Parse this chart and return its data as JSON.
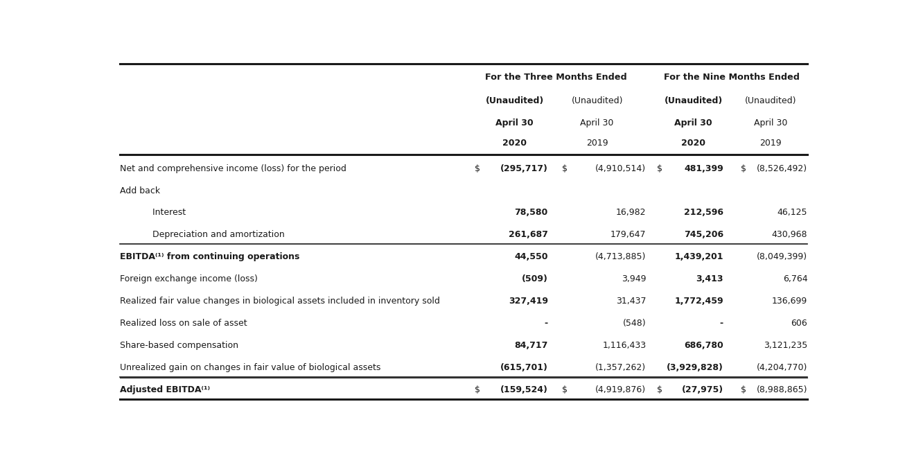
{
  "rows": [
    {
      "label": "Net and comprehensive income (loss) for the period",
      "bold": false,
      "indent": false,
      "has_dollar": true,
      "values": [
        "(295,717)",
        "(4,910,514)",
        "481,399",
        "(8,526,492)"
      ],
      "bold_values": [
        true,
        false,
        true,
        false
      ],
      "dollar_signs": [
        "$",
        "$",
        "$",
        "$"
      ],
      "separator_below": false
    },
    {
      "label": "Add back",
      "bold": false,
      "indent": false,
      "has_dollar": false,
      "values": [
        "",
        "",
        "",
        ""
      ],
      "bold_values": [
        false,
        false,
        false,
        false
      ],
      "dollar_signs": [
        "",
        "",
        "",
        ""
      ],
      "separator_below": false
    },
    {
      "label": "Interest",
      "bold": false,
      "indent": true,
      "has_dollar": false,
      "values": [
        "78,580",
        "16,982",
        "212,596",
        "46,125"
      ],
      "bold_values": [
        true,
        false,
        true,
        false
      ],
      "dollar_signs": [
        "",
        "",
        "",
        ""
      ],
      "separator_below": false
    },
    {
      "label": "Depreciation and amortization",
      "bold": false,
      "indent": true,
      "has_dollar": false,
      "values": [
        "261,687",
        "179,647",
        "745,206",
        "430,968"
      ],
      "bold_values": [
        true,
        false,
        true,
        false
      ],
      "dollar_signs": [
        "",
        "",
        "",
        ""
      ],
      "separator_below": true
    },
    {
      "label": "EBITDA(1) from continuing operations",
      "bold": true,
      "indent": false,
      "has_dollar": false,
      "values": [
        "44,550",
        "(4,713,885)",
        "1,439,201",
        "(8,049,399)"
      ],
      "bold_values": [
        true,
        false,
        true,
        false
      ],
      "dollar_signs": [
        "",
        "",
        "",
        ""
      ],
      "separator_below": false
    },
    {
      "label": "Foreign exchange income (loss)",
      "bold": false,
      "indent": false,
      "has_dollar": false,
      "values": [
        "(509)",
        "3,949",
        "3,413",
        "6,764"
      ],
      "bold_values": [
        true,
        false,
        true,
        false
      ],
      "dollar_signs": [
        "",
        "",
        "",
        ""
      ],
      "separator_below": false
    },
    {
      "label": "Realized fair value changes in biological assets included in inventory sold",
      "bold": false,
      "indent": false,
      "has_dollar": false,
      "values": [
        "327,419",
        "31,437",
        "1,772,459",
        "136,699"
      ],
      "bold_values": [
        true,
        false,
        true,
        false
      ],
      "dollar_signs": [
        "",
        "",
        "",
        ""
      ],
      "separator_below": false
    },
    {
      "label": "Realized loss on sale of asset",
      "bold": false,
      "indent": false,
      "has_dollar": false,
      "values": [
        "-",
        "(548)",
        "-",
        "606"
      ],
      "bold_values": [
        true,
        false,
        true,
        false
      ],
      "dollar_signs": [
        "",
        "",
        "",
        ""
      ],
      "separator_below": false
    },
    {
      "label": "Share-based compensation",
      "bold": false,
      "indent": false,
      "has_dollar": false,
      "values": [
        "84,717",
        "1,116,433",
        "686,780",
        "3,121,235"
      ],
      "bold_values": [
        true,
        false,
        true,
        false
      ],
      "dollar_signs": [
        "",
        "",
        "",
        ""
      ],
      "separator_below": false
    },
    {
      "label": "Unrealized gain on changes in fair value of biological assets",
      "bold": false,
      "indent": false,
      "has_dollar": false,
      "values": [
        "(615,701)",
        "(1,357,262)",
        "(3,929,828)",
        "(4,204,770)"
      ],
      "bold_values": [
        true,
        false,
        true,
        false
      ],
      "dollar_signs": [
        "",
        "",
        "",
        ""
      ],
      "separator_below": true
    },
    {
      "label": "Adjusted EBITDA(1)",
      "bold": true,
      "indent": false,
      "has_dollar": true,
      "values": [
        "(159,524)",
        "(4,919,876)",
        "(27,975)",
        "(8,988,865)"
      ],
      "bold_values": [
        true,
        false,
        true,
        false
      ],
      "dollar_signs": [
        "$",
        "$",
        "$",
        "$"
      ],
      "separator_below": false
    }
  ],
  "header": {
    "group1": "For the Three Months Ended",
    "group2": "For the Nine Months Ended",
    "unaudited": [
      "(Unaudited)",
      "(Unaudited)",
      "(Unaudited)",
      "(Unaudited)"
    ],
    "april": [
      "April 30",
      "April 30",
      "April 30",
      "April 30"
    ],
    "year": [
      "2020",
      "2019",
      "2020",
      "2019"
    ],
    "col_bold": [
      true,
      false,
      true,
      false
    ]
  },
  "bg_color": "#ffffff",
  "line_color": "#1a1a1a",
  "text_color": "#1a1a1a",
  "fontsize": 9.0,
  "header_fontsize": 9.2
}
